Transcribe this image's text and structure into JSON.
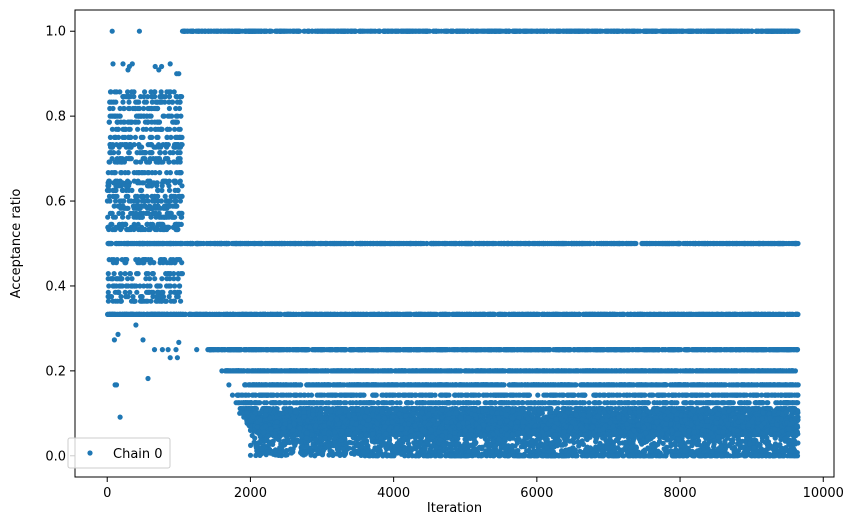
{
  "chart_data": {
    "type": "scatter",
    "xlabel": "Iteration",
    "ylabel": "Acceptance ratio",
    "xlim": [
      -450,
      10150
    ],
    "ylim": [
      -0.05,
      1.05
    ],
    "xticks": [
      0,
      2000,
      4000,
      6000,
      8000,
      10000
    ],
    "xtick_labels": [
      "0",
      "2000",
      "4000",
      "6000",
      "8000",
      "10000"
    ],
    "yticks": [
      0.0,
      0.2,
      0.4,
      0.6,
      0.8,
      1.0
    ],
    "ytick_labels": [
      "0.0",
      "0.2",
      "0.4",
      "0.6",
      "0.8",
      "1.0"
    ],
    "grid": false,
    "legend_position": "lower-left",
    "marker_color": "#1f77b4",
    "series": [
      {
        "name": "Chain 0",
        "description_bands": [
          {
            "x_range": [
              0,
              1050
            ],
            "y_range": [
              0.09,
              1.0
            ],
            "pattern": "dense discrete levels 0.25-0.85"
          },
          {
            "x_range": [
              1050,
              9650
            ],
            "y": 1.0
          },
          {
            "x_range": [
              0,
              9650
            ],
            "y": 0.5
          },
          {
            "x_range": [
              0,
              9650
            ],
            "y": 0.333
          },
          {
            "x_range": [
              1400,
              9650
            ],
            "y": 0.25
          },
          {
            "x_range": [
              1600,
              9650
            ],
            "y": 0.2
          },
          {
            "x_range": [
              1900,
              9650
            ],
            "y": 0.167
          },
          {
            "x_range": [
              2000,
              9650
            ],
            "y_range": [
              0.0,
              0.143
            ],
            "pattern": "dense cloud"
          }
        ],
        "points": [
          [
            50,
            0.333
          ],
          [
            60,
            0.5
          ],
          [
            70,
            0.571
          ],
          [
            80,
            0.625
          ],
          [
            90,
            0.714
          ],
          [
            100,
            0.75
          ],
          [
            110,
            0.8
          ],
          [
            120,
            0.833
          ],
          [
            130,
            0.857
          ],
          [
            140,
            0.462
          ],
          [
            150,
            0.417
          ],
          [
            160,
            0.385
          ],
          [
            170,
            0.545
          ],
          [
            180,
            0.6
          ],
          [
            190,
            0.667
          ],
          [
            200,
            0.692
          ],
          [
            210,
            0.733
          ],
          [
            220,
            0.769
          ],
          [
            230,
            0.818
          ],
          [
            240,
            0.846
          ],
          [
            250,
            0.429
          ],
          [
            260,
            0.455
          ],
          [
            270,
            0.5
          ],
          [
            280,
            0.533
          ],
          [
            290,
            0.583
          ],
          [
            300,
            0.636
          ],
          [
            310,
            0.643
          ],
          [
            320,
            0.7
          ],
          [
            330,
            0.727
          ],
          [
            340,
            0.786
          ],
          [
            350,
            0.4
          ],
          [
            360,
            0.375
          ],
          [
            370,
            0.364
          ],
          [
            380,
            0.5
          ],
          [
            390,
            0.538
          ],
          [
            400,
            0.562
          ],
          [
            410,
            0.588
          ],
          [
            420,
            0.611
          ],
          [
            430,
            0.647
          ],
          [
            440,
            0.667
          ],
          [
            450,
            0.333
          ],
          [
            460,
            0.5
          ],
          [
            470,
            0.571
          ],
          [
            480,
            0.625
          ],
          [
            490,
            0.714
          ],
          [
            500,
            0.75
          ],
          [
            510,
            0.8
          ],
          [
            520,
            0.833
          ],
          [
            530,
            0.462
          ],
          [
            540,
            0.417
          ],
          [
            550,
            0.385
          ],
          [
            560,
            0.545
          ],
          [
            570,
            0.6
          ],
          [
            580,
            0.667
          ],
          [
            590,
            0.692
          ],
          [
            600,
            0.733
          ],
          [
            610,
            0.769
          ],
          [
            620,
            0.818
          ],
          [
            630,
            0.846
          ],
          [
            640,
            0.429
          ],
          [
            650,
            0.455
          ],
          [
            660,
            0.5
          ],
          [
            670,
            0.533
          ],
          [
            680,
            0.583
          ],
          [
            690,
            0.636
          ],
          [
            700,
            0.643
          ],
          [
            710,
            0.7
          ],
          [
            720,
            0.727
          ],
          [
            730,
            0.786
          ],
          [
            740,
            0.4
          ],
          [
            750,
            0.375
          ],
          [
            760,
            0.364
          ],
          [
            770,
            0.5
          ],
          [
            780,
            0.538
          ],
          [
            790,
            0.562
          ],
          [
            800,
            0.588
          ],
          [
            810,
            0.611
          ],
          [
            820,
            0.647
          ],
          [
            830,
            0.667
          ],
          [
            840,
            0.333
          ],
          [
            850,
            0.5
          ],
          [
            860,
            0.571
          ],
          [
            870,
            0.625
          ],
          [
            880,
            0.714
          ],
          [
            890,
            0.75
          ],
          [
            900,
            0.8
          ],
          [
            910,
            0.833
          ],
          [
            920,
            0.462
          ],
          [
            930,
            0.417
          ],
          [
            940,
            0.385
          ],
          [
            950,
            0.545
          ],
          [
            960,
            0.6
          ],
          [
            970,
            0.667
          ],
          [
            980,
            0.692
          ],
          [
            990,
            0.733
          ],
          [
            1000,
            0.769
          ],
          [
            1010,
            0.818
          ],
          [
            1020,
            0.846
          ],
          [
            1030,
            0.429
          ],
          [
            1040,
            0.455
          ],
          [
            70,
            1.0
          ],
          [
            450,
            1.0
          ],
          [
            80,
            0.923
          ],
          [
            220,
            0.923
          ],
          [
            290,
            0.909
          ],
          [
            310,
            0.917
          ],
          [
            350,
            0.923
          ],
          [
            670,
            0.917
          ],
          [
            720,
            0.909
          ],
          [
            760,
            0.917
          ],
          [
            880,
            0.923
          ],
          [
            970,
            0.9
          ],
          [
            1000,
            0.9
          ],
          [
            100,
            0.273
          ],
          [
            150,
            0.286
          ],
          [
            400,
            0.308
          ],
          [
            500,
            0.273
          ],
          [
            660,
            0.25
          ],
          [
            770,
            0.25
          ],
          [
            850,
            0.25
          ],
          [
            880,
            0.231
          ],
          [
            960,
            0.25
          ],
          [
            980,
            0.231
          ],
          [
            1000,
            0.267
          ],
          [
            110,
            0.167
          ],
          [
            130,
            0.167
          ],
          [
            180,
            0.091
          ],
          [
            570,
            0.182
          ],
          [
            1150,
            0.333
          ],
          [
            1250,
            0.25
          ],
          [
            1350,
            0.333
          ],
          [
            1450,
            0.25
          ],
          [
            1550,
            0.25
          ],
          [
            1650,
            0.2
          ],
          [
            1700,
            0.167
          ],
          [
            1750,
            0.143
          ],
          [
            1800,
            0.125
          ],
          [
            1850,
            0.1
          ],
          [
            1900,
            0.111
          ],
          [
            1950,
            0.091
          ],
          [
            2050,
            0.071
          ],
          [
            2100,
            0.083
          ],
          [
            2200,
            0.067
          ],
          [
            2300,
            0.059
          ],
          [
            2400,
            0.056
          ],
          [
            2500,
            0.077
          ],
          [
            2600,
            0.045
          ],
          [
            2700,
            0.062
          ],
          [
            2800,
            0.053
          ],
          [
            2900,
            0.043
          ],
          [
            3000,
            0.04
          ],
          [
            3100,
            0.071
          ],
          [
            3200,
            0.037
          ],
          [
            3300,
            0.05
          ],
          [
            3400,
            0.031
          ],
          [
            3500,
            0.029
          ],
          [
            3600,
            0.0
          ],
          [
            3700,
            0.034
          ],
          [
            3800,
            0.045
          ],
          [
            3900,
            0.028
          ],
          [
            4000,
            0.062
          ],
          [
            4100,
            0.059
          ],
          [
            4200,
            0.071
          ],
          [
            4300,
            0.083
          ],
          [
            4400,
            0.033
          ],
          [
            4500,
            0.038
          ],
          [
            4600,
            0.042
          ],
          [
            4700,
            0.036
          ],
          [
            4800,
            0.021
          ],
          [
            4900,
            0.0
          ],
          [
            5000,
            0.0
          ],
          [
            5100,
            0.0
          ],
          [
            5200,
            0.02
          ],
          [
            5300,
            0.0
          ],
          [
            5400,
            0.0
          ],
          [
            5500,
            0.018
          ],
          [
            5600,
            0.0
          ],
          [
            5700,
            0.067
          ],
          [
            5800,
            0.0
          ],
          [
            5900,
            0.048
          ],
          [
            6000,
            0.052
          ],
          [
            6100,
            0.058
          ],
          [
            6200,
            0.0
          ],
          [
            6300,
            0.045
          ],
          [
            6400,
            0.0
          ],
          [
            6500,
            0.0
          ],
          [
            6600,
            0.028
          ],
          [
            6700,
            0.065
          ],
          [
            6800,
            0.069
          ],
          [
            6900,
            0.055
          ],
          [
            7000,
            0.083
          ],
          [
            7100,
            0.071
          ],
          [
            7200,
            0.0
          ],
          [
            7300,
            0.062
          ],
          [
            7400,
            0.059
          ],
          [
            7500,
            0.0
          ],
          [
            7600,
            0.042
          ],
          [
            7700,
            0.0
          ],
          [
            7800,
            0.0
          ],
          [
            7900,
            0.0
          ],
          [
            8000,
            0.0
          ],
          [
            8100,
            0.0
          ],
          [
            8200,
            0.031
          ],
          [
            8300,
            0.0
          ],
          [
            8400,
            0.05
          ],
          [
            8500,
            0.053
          ],
          [
            8600,
            0.0
          ],
          [
            8700,
            0.0
          ],
          [
            8800,
            0.056
          ],
          [
            8900,
            0.0
          ],
          [
            9000,
            0.0
          ],
          [
            9100,
            0.0
          ],
          [
            9200,
            0.0
          ],
          [
            9300,
            0.0
          ],
          [
            9400,
            0.0
          ],
          [
            9500,
            0.0
          ],
          [
            9600,
            0.0
          ]
        ]
      }
    ]
  },
  "legend": {
    "label": "Chain 0"
  }
}
